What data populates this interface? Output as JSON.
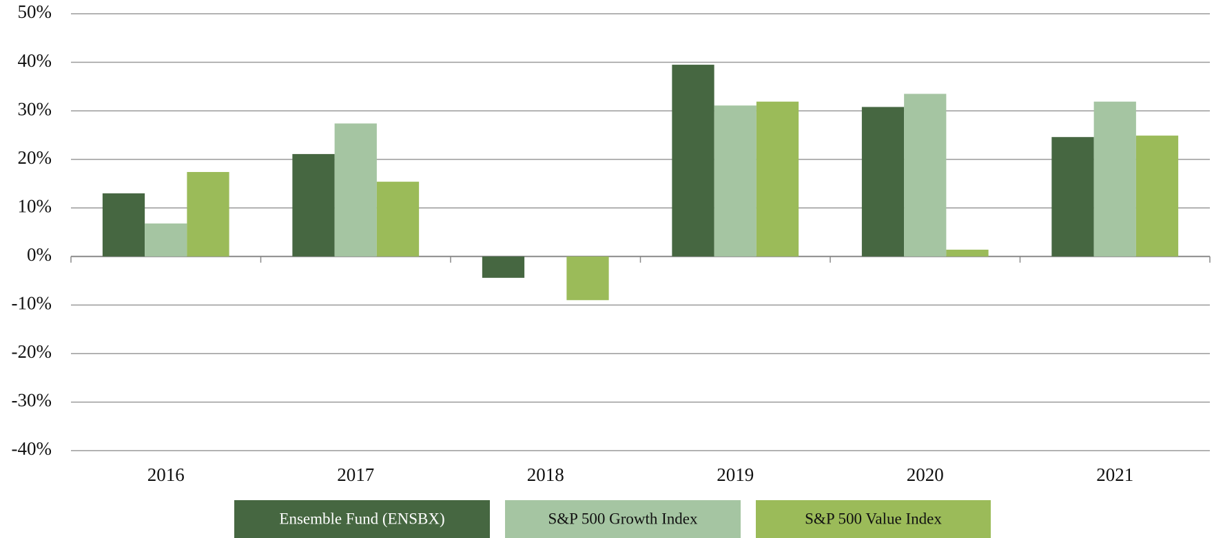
{
  "chart_data": {
    "type": "bar",
    "categories": [
      "2016",
      "2017",
      "2018",
      "2019",
      "2020",
      "2021"
    ],
    "series": [
      {
        "name": "Ensemble Fund (ENSBX)",
        "color": "#466741",
        "values": [
          13.0,
          21.1,
          -4.4,
          39.5,
          30.8,
          24.6
        ]
      },
      {
        "name": "S&P 500 Growth Index",
        "color": "#a5c5a2",
        "values": [
          6.8,
          27.4,
          -0.01,
          31.1,
          33.5,
          31.9
        ]
      },
      {
        "name": "S&P 500 Value Index",
        "color": "#9bbb59",
        "values": [
          17.4,
          15.4,
          -9.0,
          31.9,
          1.4,
          24.9
        ]
      }
    ],
    "ylim": [
      -40,
      50
    ],
    "yticks": [
      {
        "value": -40,
        "label": "-40%"
      },
      {
        "value": -30,
        "label": "-30%"
      },
      {
        "value": -20,
        "label": "-20%"
      },
      {
        "value": -10,
        "label": "-10%"
      },
      {
        "value": 0,
        "label": "0%"
      },
      {
        "value": 10,
        "label": "10%"
      },
      {
        "value": 20,
        "label": "20%"
      },
      {
        "value": 30,
        "label": "30%"
      },
      {
        "value": 40,
        "label": "40%"
      },
      {
        "value": 50,
        "label": "50%"
      }
    ],
    "grid": true,
    "legend": "bottom"
  }
}
